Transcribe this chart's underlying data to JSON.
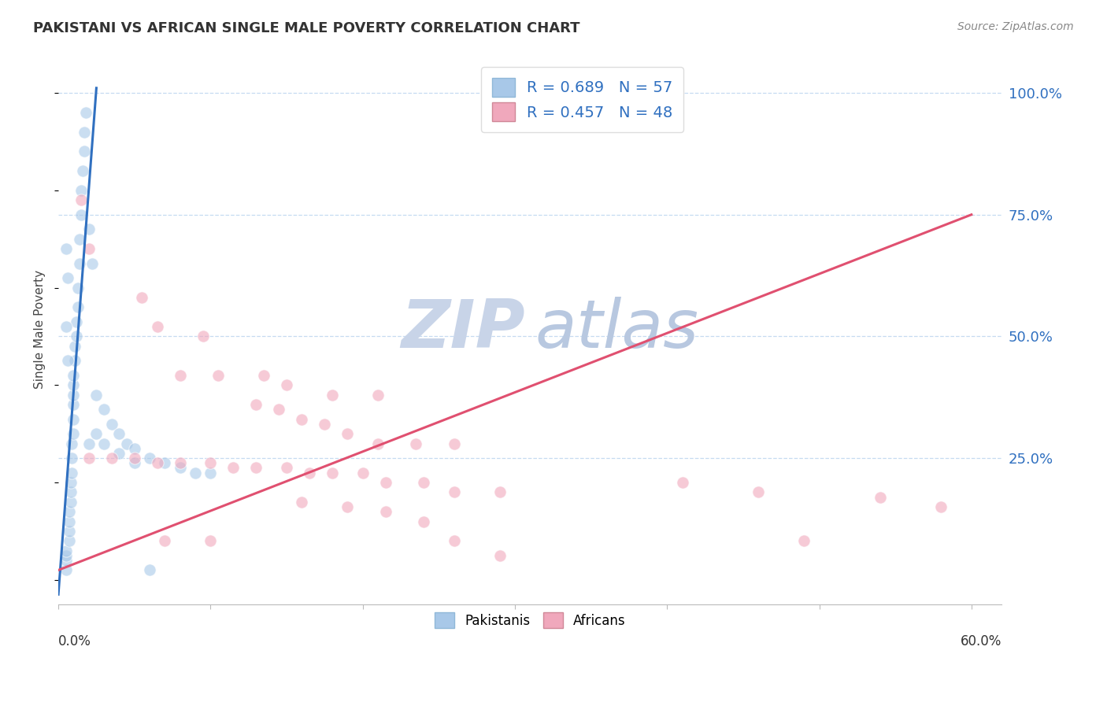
{
  "title": "PAKISTANI VS AFRICAN SINGLE MALE POVERTY CORRELATION CHART",
  "source": "Source: ZipAtlas.com",
  "ylabel": "Single Male Poverty",
  "xlim": [
    0.0,
    0.62
  ],
  "ylim": [
    -0.05,
    1.08
  ],
  "blue_color": "#A8C8E8",
  "pink_color": "#F0A8BC",
  "blue_line_color": "#3070C0",
  "pink_line_color": "#E05070",
  "watermark_zip_color": "#C8D4E8",
  "watermark_atlas_color": "#B8C8E0",
  "pakistani_R": "0.689",
  "pakistani_N": "57",
  "african_R": "0.457",
  "african_N": "48",
  "legend_pakistanis": "Pakistanis",
  "legend_africans": "Africans",
  "pak_line_x1": 0.0,
  "pak_line_y1": -0.03,
  "pak_line_x2": 0.025,
  "pak_line_y2": 1.01,
  "afr_line_x1": 0.0,
  "afr_line_y1": 0.02,
  "afr_line_x2": 0.6,
  "afr_line_y2": 0.75,
  "pakistani_points": [
    [
      0.005,
      0.02
    ],
    [
      0.005,
      0.04
    ],
    [
      0.005,
      0.05
    ],
    [
      0.005,
      0.06
    ],
    [
      0.007,
      0.08
    ],
    [
      0.007,
      0.1
    ],
    [
      0.007,
      0.12
    ],
    [
      0.007,
      0.14
    ],
    [
      0.008,
      0.16
    ],
    [
      0.008,
      0.18
    ],
    [
      0.008,
      0.2
    ],
    [
      0.009,
      0.22
    ],
    [
      0.009,
      0.25
    ],
    [
      0.009,
      0.28
    ],
    [
      0.01,
      0.3
    ],
    [
      0.01,
      0.33
    ],
    [
      0.01,
      0.36
    ],
    [
      0.01,
      0.38
    ],
    [
      0.01,
      0.4
    ],
    [
      0.01,
      0.42
    ],
    [
      0.011,
      0.45
    ],
    [
      0.011,
      0.48
    ],
    [
      0.012,
      0.5
    ],
    [
      0.012,
      0.53
    ],
    [
      0.013,
      0.56
    ],
    [
      0.013,
      0.6
    ],
    [
      0.014,
      0.65
    ],
    [
      0.014,
      0.7
    ],
    [
      0.015,
      0.75
    ],
    [
      0.015,
      0.8
    ],
    [
      0.016,
      0.84
    ],
    [
      0.017,
      0.88
    ],
    [
      0.017,
      0.92
    ],
    [
      0.018,
      0.96
    ],
    [
      0.02,
      0.72
    ],
    [
      0.022,
      0.65
    ],
    [
      0.005,
      0.68
    ],
    [
      0.006,
      0.62
    ],
    [
      0.025,
      0.38
    ],
    [
      0.03,
      0.35
    ],
    [
      0.035,
      0.32
    ],
    [
      0.04,
      0.3
    ],
    [
      0.045,
      0.28
    ],
    [
      0.05,
      0.27
    ],
    [
      0.06,
      0.25
    ],
    [
      0.07,
      0.24
    ],
    [
      0.08,
      0.23
    ],
    [
      0.09,
      0.22
    ],
    [
      0.1,
      0.22
    ],
    [
      0.02,
      0.28
    ],
    [
      0.025,
      0.3
    ],
    [
      0.03,
      0.28
    ],
    [
      0.04,
      0.26
    ],
    [
      0.05,
      0.24
    ],
    [
      0.005,
      0.52
    ],
    [
      0.006,
      0.45
    ],
    [
      0.06,
      0.02
    ]
  ],
  "african_points": [
    [
      0.015,
      0.78
    ],
    [
      0.02,
      0.68
    ],
    [
      0.055,
      0.58
    ],
    [
      0.065,
      0.52
    ],
    [
      0.095,
      0.5
    ],
    [
      0.08,
      0.42
    ],
    [
      0.105,
      0.42
    ],
    [
      0.135,
      0.42
    ],
    [
      0.15,
      0.4
    ],
    [
      0.18,
      0.38
    ],
    [
      0.21,
      0.38
    ],
    [
      0.13,
      0.36
    ],
    [
      0.145,
      0.35
    ],
    [
      0.16,
      0.33
    ],
    [
      0.175,
      0.32
    ],
    [
      0.19,
      0.3
    ],
    [
      0.21,
      0.28
    ],
    [
      0.235,
      0.28
    ],
    [
      0.26,
      0.28
    ],
    [
      0.02,
      0.25
    ],
    [
      0.035,
      0.25
    ],
    [
      0.05,
      0.25
    ],
    [
      0.065,
      0.24
    ],
    [
      0.08,
      0.24
    ],
    [
      0.1,
      0.24
    ],
    [
      0.115,
      0.23
    ],
    [
      0.13,
      0.23
    ],
    [
      0.15,
      0.23
    ],
    [
      0.165,
      0.22
    ],
    [
      0.18,
      0.22
    ],
    [
      0.2,
      0.22
    ],
    [
      0.215,
      0.2
    ],
    [
      0.24,
      0.2
    ],
    [
      0.26,
      0.18
    ],
    [
      0.29,
      0.18
    ],
    [
      0.16,
      0.16
    ],
    [
      0.19,
      0.15
    ],
    [
      0.215,
      0.14
    ],
    [
      0.24,
      0.12
    ],
    [
      0.07,
      0.08
    ],
    [
      0.1,
      0.08
    ],
    [
      0.26,
      0.08
    ],
    [
      0.49,
      0.08
    ],
    [
      0.41,
      0.2
    ],
    [
      0.46,
      0.18
    ],
    [
      0.54,
      0.17
    ],
    [
      0.58,
      0.15
    ],
    [
      0.29,
      0.05
    ]
  ]
}
